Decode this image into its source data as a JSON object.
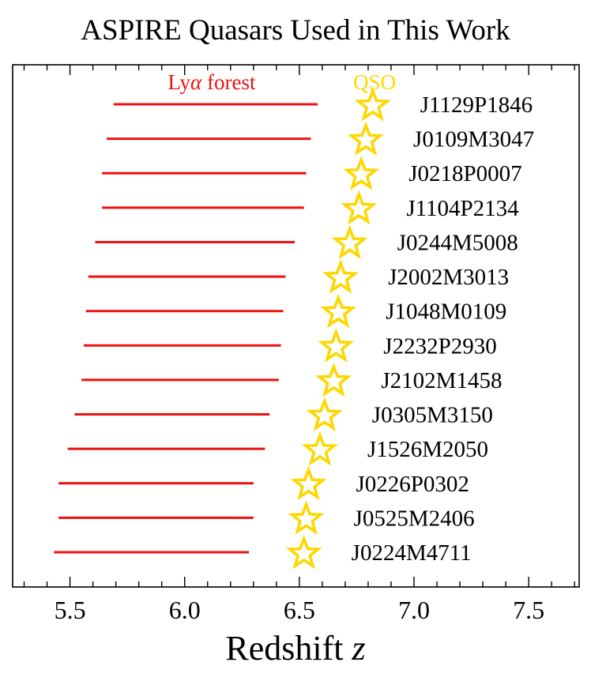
{
  "chart_data": {
    "type": "scatter",
    "title": "ASPIRE Quasars Used in This Work",
    "xlabel": "Redshift",
    "xlabel_var": "z",
    "ylabel": "",
    "xlim": [
      5.25,
      7.72
    ],
    "xticks_major": [
      5.5,
      6.0,
      6.5,
      7.0,
      7.5
    ],
    "xticks_major_labels": [
      "5.5",
      "6.0",
      "6.5",
      "7.0",
      "7.5"
    ],
    "xticks_minor_step": 0.1,
    "grid": false,
    "legend": {
      "position": "top",
      "entries": [
        {
          "label_prefix": "Ly",
          "label_greek": "α",
          "label_suffix": " forest",
          "color": "#ee1111"
        },
        {
          "label": "QSO",
          "color": "#ffd700"
        }
      ]
    },
    "colors": {
      "forest": "#ee1111",
      "qso_edge": "#ffd700",
      "qso_fill": "#ffffff"
    },
    "series": [
      {
        "name": "J1129P1846",
        "z_qso": 6.82,
        "forest_start": 5.69,
        "forest_end": 6.58
      },
      {
        "name": "J0109M3047",
        "z_qso": 6.79,
        "forest_start": 5.66,
        "forest_end": 6.55
      },
      {
        "name": "J0218P0007",
        "z_qso": 6.77,
        "forest_start": 5.64,
        "forest_end": 6.53
      },
      {
        "name": "J1104P2134",
        "z_qso": 6.76,
        "forest_start": 5.64,
        "forest_end": 6.52
      },
      {
        "name": "J0244M5008",
        "z_qso": 6.72,
        "forest_start": 5.61,
        "forest_end": 6.48
      },
      {
        "name": "J2002M3013",
        "z_qso": 6.68,
        "forest_start": 5.58,
        "forest_end": 6.44
      },
      {
        "name": "J1048M0109",
        "z_qso": 6.67,
        "forest_start": 5.57,
        "forest_end": 6.43
      },
      {
        "name": "J2232P2930",
        "z_qso": 6.66,
        "forest_start": 5.56,
        "forest_end": 6.42
      },
      {
        "name": "J2102M1458",
        "z_qso": 6.65,
        "forest_start": 5.55,
        "forest_end": 6.41
      },
      {
        "name": "J0305M3150",
        "z_qso": 6.61,
        "forest_start": 5.52,
        "forest_end": 6.37
      },
      {
        "name": "J1526M2050",
        "z_qso": 6.59,
        "forest_start": 5.49,
        "forest_end": 6.35
      },
      {
        "name": "J0226P0302",
        "z_qso": 6.54,
        "forest_start": 5.45,
        "forest_end": 6.3
      },
      {
        "name": "J0525M2406",
        "z_qso": 6.53,
        "forest_start": 5.45,
        "forest_end": 6.3
      },
      {
        "name": "J0224M4711",
        "z_qso": 6.52,
        "forest_start": 5.43,
        "forest_end": 6.28
      }
    ]
  }
}
